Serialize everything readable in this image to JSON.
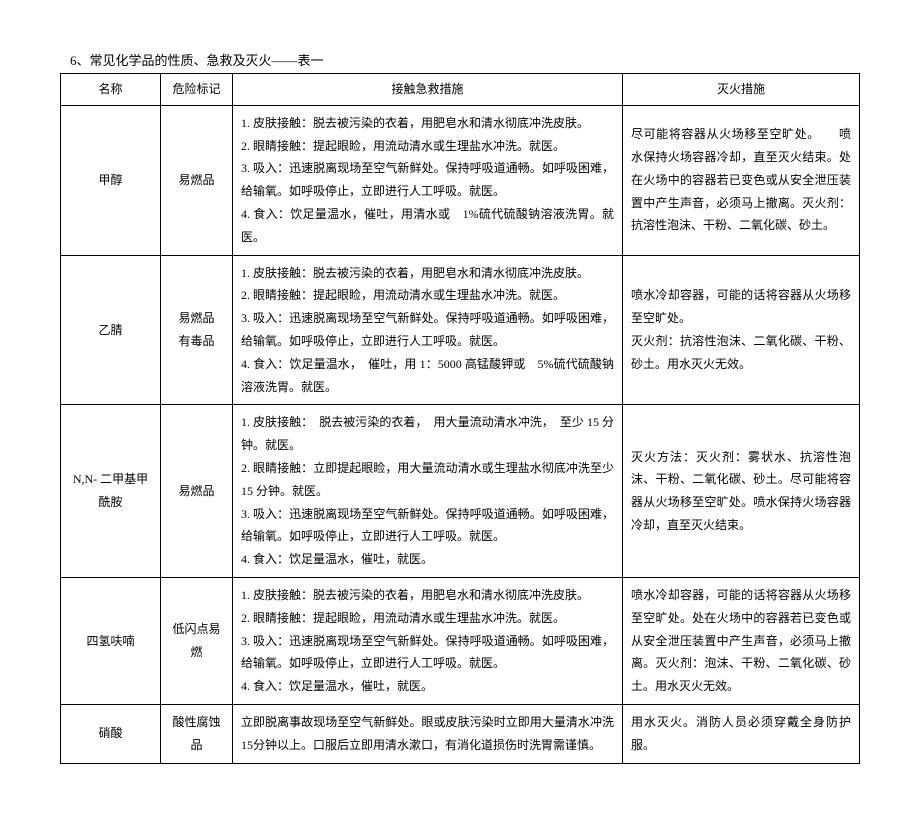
{
  "doc_title": "6、常见化学品的性质、急救及灭火——表一",
  "headers": {
    "name": "名称",
    "hazard": "危险标记",
    "aid": "接触急救措施",
    "fire": "灭火措施"
  },
  "rows": [
    {
      "name": "甲醇",
      "hazard": "易燃品",
      "aid": "1. 皮肤接触：脱去被污染的衣着，用肥皂水和清水彻底冲洗皮肤。\n2. 眼睛接触：提起眼睑，用流动清水或生理盐水冲洗。就医。\n3. 吸入：迅速脱离现场至空气新鲜处。保持呼吸道通畅。如呼吸困难，给输氧。如呼吸停止，立即进行人工呼吸。就医。\n4. 食入：饮足量温水，催吐，用清水或　1%硫代硫酸钠溶液洗胃。就医。",
      "fire": "尽可能将容器从火场移至空旷处。　　喷水保持火场容器冷却，直至灭火结束。处在火场中的容器若已变色或从安全泄压装置中产生声音，必须马上撤离。灭火剂：抗溶性泡沫、干粉、二氧化碳、砂土。"
    },
    {
      "name": "乙腈",
      "hazard": "易燃品\n有毒品",
      "aid": "1. 皮肤接触：脱去被污染的衣着，用肥皂水和清水彻底冲洗皮肤。\n2. 眼睛接触：提起眼睑，用流动清水或生理盐水冲洗。就医。\n3. 吸入：迅速脱离现场至空气新鲜处。保持呼吸道通畅。如呼吸困难，给输氧。如呼吸停止，立即进行人工呼吸。就医。\n4. 食入：饮足量温水，　催吐，用 1：5000 高锰酸钾或　5%硫代硫酸钠溶液洗胃。就医。",
      "fire": "喷水冷却容器，可能的话将容器从火场移至空旷处。\n灭火剂：抗溶性泡沫、二氧化碳、干粉、砂土。用水灭火无效。"
    },
    {
      "name": "N,N- 二甲基甲酰胺",
      "hazard": "易燃品",
      "aid": "1. 皮肤接触：　脱去被污染的衣着，　用大量流动清水冲洗，　至少 15 分钟。就医。\n2. 眼睛接触：立即提起眼睑，用大量流动清水或生理盐水彻底冲洗至少　　　15 分钟。就医。\n3. 吸入：迅速脱离现场至空气新鲜处。保持呼吸道通畅。如呼吸困难，给输氧。如呼吸停止，立即进行人工呼吸。就医。\n4. 食入：饮足量温水，催吐，就医。",
      "fire": "灭火方法：灭火剂：雾状水、抗溶性泡沫、干粉、二氧化碳、砂土。尽可能将容器从火场移至空旷处。喷水保持火场容器冷却，直至灭火结束。"
    },
    {
      "name": "四氢呋喃",
      "hazard": "低闪点易燃",
      "aid": "1. 皮肤接触：脱去被污染的衣着，用肥皂水和清水彻底冲洗皮肤。\n2. 眼睛接触：提起眼睑，用流动清水或生理盐水冲洗。就医。\n3. 吸入：迅速脱离现场至空气新鲜处。保持呼吸道通畅。如呼吸困难，给输氧。如呼吸停止，立即进行人工呼吸。就医。\n4. 食入：饮足量温水，催吐，就医。",
      "fire": "喷水冷却容器，可能的话将容器从火场移至空旷处。处在火场中的容器若已变色或从安全泄压装置中产生声音，必须马上撤离。灭火剂：泡沫、干粉、二氧化碳、砂土。用水灭火无效。"
    },
    {
      "name": "硝酸",
      "hazard": "酸性腐蚀品",
      "aid": "立即脱离事故现场至空气新鲜处。眼或皮肤污染时立即用大量清水冲洗　　15分钟以上。口服后立即用清水漱口，有消化道损伤时洗胃需谨慎。",
      "fire": "用水灭火。消防人员必须穿戴全身防护服。"
    }
  ]
}
